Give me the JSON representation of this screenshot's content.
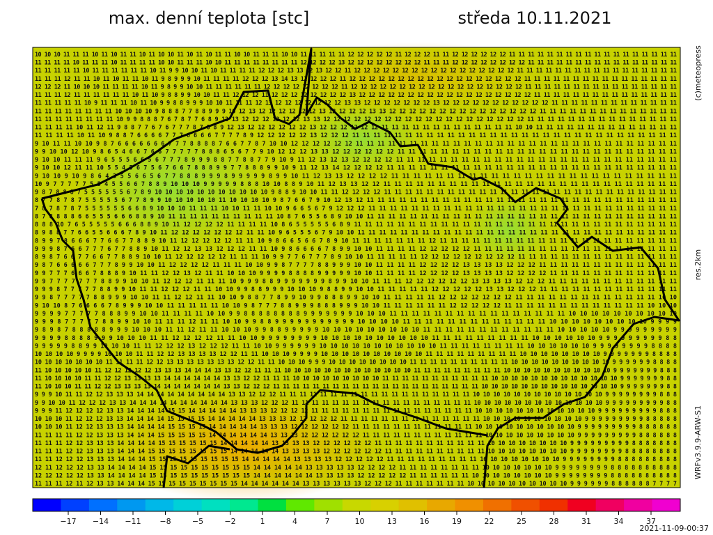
{
  "header": {
    "title": "max. denní teplota [stc]",
    "date": "středa 10.11.2021"
  },
  "side": {
    "copyright": "(c)meteopress",
    "resolution": "res.2km",
    "model": "WRFv3.9.9-ARW-S1"
  },
  "footer": {
    "timestamp": "2021-11-09-00:37"
  },
  "colorbar": {
    "colors": [
      "#0000ff",
      "#0040ff",
      "#0070ff",
      "#0098f0",
      "#00b8e8",
      "#00d0d8",
      "#00e0c0",
      "#00e890",
      "#00e040",
      "#60e800",
      "#a0e000",
      "#c8d800",
      "#d8d000",
      "#e0c000",
      "#e8a800",
      "#f09000",
      "#f07000",
      "#f05000",
      "#f03000",
      "#f00020",
      "#f00060",
      "#f000a0",
      "#f000d0"
    ],
    "labels": [
      "−17",
      "−14",
      "−11",
      "−8",
      "−5",
      "−2",
      "1",
      "4",
      "7",
      "10",
      "13",
      "16",
      "19",
      "22",
      "25",
      "28",
      "31",
      "34",
      "37"
    ]
  },
  "grid": {
    "rows": [
      "10 10 10 11 11 11 10 11 10 11 11 10 11 10 10 11 10 11 10 11 11 10 10 11 11 11 10 10 11 11 11 11 11 12 12 12 12 12 11 12 12 12 11 11 12 12 12 12 12 12 11 11 11 11 11 11 11 11 11 11 11 11 11 11 11 11 11 11",
      "11 11 11 11 10 11 11 11 10 11 11 11 11 10 10 11 11 11 10 10 11 11 11 11 11 11 11 11 12 12 12 12 13 12 12 12 12 12 12 12 12 11 11 11 12 12 12 12 12 12 12 12 11 11 11 11 11 11 11 11 11 11 11 11 11 11 11 11",
      "11 11 11 11 11 10 11 11 11 11 11 11 10 11 9 9 10 10 11 10 11 11 11 11 12 12 12 13 13 12 13 12 12 11 12 12 12 12 12 12 12 12 12 12 12 12 12 12 12 12 12 11 11 11 11 11 11 11 11 11 11 11 11 11 11 11 11 11",
      "11 11 11 12 11 11 10 11 10 11 11 10 11 9 8 9 9 9 10 11 11 11 11 12 12 12 13 14 13 12 12 12 12 11 12 12 12 12 12 12 12 12 12 12 12 12 12 12 12 12 12 12 11 11 11 11 11 11 11 11 11 11 11 11 11 11 11 11",
      "12 12 12 11 10 10 10 11 11 11 11 10 11 9 8 9 9 10 10 11 11 11 11 11 11 12 12 12 12 12 12 12 12 11 12 12 12 12 12 12 12 12 12 12 12 12 12 12 12 12 12 12 11 11 11 11 11 11 11 11 11 11 11 11 11 11 11 11",
      "11 11 11 12 11 11 11 11 11 11 10 11 10 9 8 8 9 9 10 10 11 11 12 12 12 11 12 12 12 12 12 12 12 12 13 12 12 12 12 12 12 12 12 12 12 12 12 12 12 12 12 12 12 11 11 11 11 11 11 11 11 11 11 11 11 11 11 11",
      "11 11 11 11 11 10 9 11 11 11 10 11 10 9 9 8 8 9 9 9 10 10 11 11 11 12 13 12 12 12 12 12 12 12 13 13 12 12 12 12 12 12 12 13 12 12 12 12 12 12 12 12 12 12 12 11 11 11 11 11 11 11 11 11 11 11 11 11",
      "11 11 11 11 11 11 11 11 10 10 10 10 9 8 8 8 7 7 8 8 9 9 9 10 12 13 12 12 12 12 12 12 13 12 12 12 12 13 13 12 12 12 12 12 12 12 12 12 12 12 12 12 12 12 11 11 11 11 11 11 11 11 11 11 11 11 11 11",
      "11 11 11 11 11 11 11 11 10 9 9 8 8 8 7 6 7 8 7 7 6 8 9 12 13 12 12 12 12 12 12 13 13 12 12 12 12 12 12 12 12 12 12 12 12 12 12 12 12 12 12 12 12 11 11 11 11 11 11 11 11 11 11 11 11 11 11 11",
      "11 11 11 11 10 11 12 11 9 8 8 7 7 6 7 6 7 7 7 8 7 8 8 9 12 13 12 12 12 12 12 12 13 12 12 12 12 12 12 11 11 11 11 11 11 11 11 11 11 11 11 11 10 10 11 11 11 11 11 11 11 11 11 11 11 11 11 11",
      "11 11 11 11 10 11 10 9 8 8 7 6 6 6 6 7 7 7 6 6 6 6 7 7 7 7 8 9 12 12 12 12 12 13 12 12 12 11 11 11 11 11 11 11 11 11 11 11 11 11 11 11 11 11 11 11 11 11 11 11 11 11 11 11 11 11 11 11",
      "9 10 11 11 10 10 9 8 7 6 6 6 6 6 6 6 7 7 7 8 8 8 8 7 6 6 7 7 8 7 10 10 12 12 12 12 12 12 11 11 11 11 11 11 11 11 11 11 11 11 11 11 11 11 11 11 11 11 11 11 11 11 11 11 11 11 11 11",
      "9 9 10 10 12 10 9 8 6 5 4 6 6 7 6 6 7 7 7 7 7 8 8 8 6 5 6 7 7 9 10 12 12 12 13 13 12 12 12 12 12 12 11 11 11 11 11 11 11 11 11 11 11 11 11 11 11 11 11 11 11 11 11 11 11 11 11 11",
      "9 10 10 11 11 11 9 6 5 5 5 6 6 5 6 7 7 7 8 9 9 9 8 8 7 7 8 8 7 7 9 10 9 11 12 13 12 13 12 12 12 12 11 11 11 11 11 11 11 11 11 11 11 11 11 11 11 11 11 11 11 11 11 11 11 11 11 11",
      "9 10 10 12 11 11 10 5 5 4 5 6 7 5 6 7 6 6 7 8 8 8 9 9 7 7 8 8 8 9 9 10 9 11 12 13 14 12 12 12 12 11 11 11 11 11 11 11 11 11 11 11 11 11 11 11 11 11 11 11 11 11 11 11 11 11 11 11",
      "9 10 10 9 10 9 8 6 4 3 5 5 6 6 5 6 7 7 8 8 8 9 9 9 8 9 9 9 9 9 8 9 9 10 11 12 13 13 12 12 12 12 11 11 11 11 11 11 11 11 11 11 11 11 11 11 11 11 11 11 11 11 11 11 11 11 11 11",
      "10 9 7 7 7 7 7 5 5 4 5 5 6 6 7 8 8 9 10 10 10 9 9 9 9 9 8 8 8 10 10 8 8 9 10 11 12 13 13 12 12 11 11 11 11 11 11 11 11 11 11 11 11 11 11 11 11 11 11 11 11 11 11 11 11 11 11 11",
      "9 8 7 8 8 8 7 5 5 5 5 5 5 6 7 8 9 10 10 10 10 10 10 10 10 10 10 10 9 8 8 9 10 10 11 11 12 12 12 12 11 11 11 11 11 11 11 11 11 11 11 11 11 11 11 11 11 11 11 11 11 11 11 11 11 11 11 11",
      "8 7 7 8 7 8 7 5 5 5 5 5 6 7 7 8 9 9 10 10 10 10 10 11 10 10 10 10 9 8 7 6 6 7 9 10 12 13 12 11 11 11 11 11 11 11 11 11 11 11 11 11 11 11 11 11 11 11 11 11 11 11 11 11 11 11 11 11",
      "7 8 7 8 7 8 7 5 5 5 5 5 5 6 6 8 9 10 10 10 11 11 11 10 10 11 11 10 10 9 6 6 5 6 7 9 12 12 12 11 11 11 11 11 11 11 11 11 11 11 11 11 11 11 11 11 11 11 11 11 11 11 11 11 11 11 11 11",
      "8 7 8 8 8 8 6 6 5 5 5 6 6 6 8 8 9 10 11 11 11 11 11 11 11 11 11 11 10 8 7 6 5 5 6 8 9 10 10 11 11 11 11 11 11 11 11 11 11 11 11 11 11 11 11 11 11 11 11 11 11 11 11 11 11 11 11 11",
      "8 8 8 10 7 6 5 5 5 5 5 6 6 6 8 8 9 10 11 12 12 12 12 11 11 11 11 10 8 6 5 5 5 5 5 6 8 9 11 11 11 11 11 11 11 11 11 11 11 11 11 11 11 11 11 11 11 11 11 11 11 11 11 11 11 11 11 11",
      "8 9 8 8 7 7 6 6 5 5 6 6 6 7 8 9 10 11 12 12 12 12 12 12 12 11 11 10 9 6 5 5 5 6 7 9 10 10 11 11 11 11 11 11 11 11 11 11 11 11 11 11 11 11 11 11 11 11 11 11 11 11 11 11 11 11 11 11",
      "8 9 9 7 8 6 6 6 7 7 6 6 7 7 8 8 9 10 11 12 12 12 12 12 11 11 10 9 8 6 6 5 6 6 7 8 9 10 11 11 11 11 11 11 11 12 11 11 11 11 11 11 11 11 11 11 11 11 11 11 11 11 11 11 11 11 11 11",
      "9 9 9 8 7 6 6 7 7 7 6 7 7 8 8 9 10 11 12 12 13 13 12 12 12 11 11 10 9 8 6 6 6 6 7 8 9 9 10 10 11 11 11 11 12 12 12 12 12 11 11 11 11 11 11 11 11 11 11 11 11 11 11 11 11 11 11 11",
      "8 9 8 7 6 6 7 7 6 6 7 7 8 8 9 10 10 11 12 12 12 12 12 11 11 11 10 9 9 7 7 6 7 7 7 8 9 10 10 11 11 11 11 11 12 12 12 12 12 12 12 12 12 11 11 11 11 11 11 11 11 11 11 11 11 11 11 11",
      "9 8 7 6 6 6 6 6 7 7 7 8 9 9 10 10 11 12 12 12 12 11 11 11 10 10 9 9 8 7 7 7 7 8 8 9 9 9 10 10 11 11 11 11 12 12 12 12 13 13 13 13 12 12 12 11 11 11 11 11 11 11 11 11 11 11 11 11",
      "9 9 7 7 7 6 6 6 7 8 8 8 9 10 11 11 12 12 13 12 11 11 10 10 10 9 9 9 9 8 8 8 8 9 9 9 9 9 10 10 11 11 11 11 12 12 12 12 13 13 13 13 12 12 12 12 11 11 11 11 11 11 11 11 11 11 11 11",
      "9 9 7 7 7 7 7 7 7 8 8 9 9 10 10 11 12 12 12 11 11 11 10 9 9 9 8 8 9 9 9 9 9 9 9 8 9 9 10 10 11 11 11 12 12 12 12 12 12 13 13 13 13 12 12 12 11 11 11 11 11 11 11 11 11 11 11 11",
      "9 9 9 8 7 7 7 7 7 8 8 9 9 10 11 11 12 12 12 11 11 10 10 9 9 8 8 9 9 9 10 10 10 9 8 8 9 9 10 10 11 11 11 11 11 12 12 12 12 12 13 13 12 12 12 11 11 11 11 11 11 11 11 11 11 11 11 11",
      "9 9 8 7 7 7 7 7 8 8 9 9 9 10 10 11 11 12 12 11 11 10 10 9 8 8 7 7 8 9 9 10 9 9 8 8 8 9 9 10 10 11 11 11 11 11 12 12 12 12 12 12 12 11 11 11 11 11 11 11 11 11 11 11 11 11 10 10",
      "9 10 10 8 7 6 6 6 6 7 8 9 9 9 10 10 11 11 11 11 11 10 10 9 8 7 7 7 8 8 9 9 9 8 8 8 9 9 9 10 10 11 11 11 11 11 11 12 12 12 12 12 11 11 11 11 11 11 11 11 11 11 11 11 11 10 10 10",
      "9 9 9 9 7 7 7 7 7 8 8 8 9 9 10 10 11 11 11 11 10 10 9 9 8 8 8 8 8 8 8 8 9 9 9 9 9 9 9 10 10 10 11 11 11 11 11 11 11 11 11 11 11 11 11 11 11 11 10 10 10 10 10 10 10 10 10 10",
      "9 9 9 8 7 7 7 7 7 8 8 9 9 10 10 11 11 11 12 11 11 10 10 9 9 8 8 9 9 9 9 9 9 9 9 9 9 9 10 10 10 10 11 11 11 11 11 11 11 11 11 11 11 11 11 10 10 10 10 10 10 10 10 10 9 9 9 9",
      "9 8 9 8 7 8 8 8 8 8 9 9 9 10 10 10 11 11 12 11 11 10 10 10 9 9 8 8 9 9 9 9 9 10 10 10 10 10 10 10 10 10 11 11 11 11 11 11 11 11 11 11 11 11 10 10 10 10 10 9 9 9 9 9 9 9 9 9",
      "9 9 9 9 8 8 8 8 9 9 9 10 10 10 11 11 12 12 12 12 11 11 10 10 9 9 9 9 9 9 9 9 10 10 10 10 10 10 10 10 10 10 11 11 11 11 11 11 11 11 11 10 10 10 10 10 10 9 9 9 9 9 9 9 9 9 8 8",
      "9 9 9 9 9 8 8 9 9 10 10 10 11 11 12 12 12 13 12 12 12 11 11 10 10 9 9 9 9 9 9 10 10 10 10 10 10 10 10 10 10 10 11 11 11 11 11 11 11 11 10 10 10 10 10 10 9 9 9 9 9 9 9 9 8 8 8 8",
      "10 10 10 10 9 9 9 9 10 10 10 11 11 12 12 13 13 13 13 12 12 11 11 10 10 10 9 9 9 9 10 10 10 10 10 10 10 10 10 10 11 11 11 11 11 11 11 11 11 10 10 10 10 10 10 10 10 9 9 9 9 9 9 9 8 8 8 8",
      "10 10 10 10 10 10 10 11 11 11 11 12 12 13 13 13 13 13 13 13 12 12 11 11 10 10 10 9 9 9 10 10 10 10 10 10 10 10 11 11 11 11 11 11 11 11 11 11 10 10 10 10 10 10 10 10 10 10 9 9 9 9 9 9 8 8 8 8",
      "11 10 10 10 10 10 11 12 12 12 12 12 13 13 13 14 14 14 13 13 12 12 11 11 11 10 10 10 10 10 10 10 10 10 10 10 10 10 11 11 11 11 11 11 11 11 11 10 10 10 10 10 10 10 10 10 10 10 9 9 9 9 9 9 9 8 8 8",
      "11 10 10 10 10 11 11 12 12 13 13 13 13 14 14 14 14 14 14 13 13 12 12 11 11 11 10 10 10 10 10 10 10 10 10 11 11 11 11 11 11 11 11 11 11 11 10 10 10 10 10 10 10 10 10 10 10 10 10 9 9 9 9 9 9 9 8 8",
      "11 10 10 10 11 11 12 12 13 13 13 13 14 14 14 14 14 14 14 13 13 12 12 12 11 11 11 11 11 11 11 11 11 11 11 11 11 11 11 11 11 11 11 11 11 10 10 10 10 10 10 10 10 10 10 10 10 10 10 9 9 9 9 9 9 9 8 8",
      "9 9 9 10 11 11 12 12 13 13 13 14 14 14 14 14 14 14 14 14 13 13 12 12 12 11 11 11 11 11 11 11 11 11 11 11 11 11 11 11 11 11 11 11 10 10 10 10 10 10 10 10 10 10 10 10 10 9 9 9 9 9 9 9 9 8 8 8",
      "9 9 10 10 11 12 12 12 13 13 14 14 14 14 14 14 14 14 14 14 13 13 13 12 12 12 11 11 11 11 11 11 11 11 11 11 11 11 11 11 11 11 11 11 10 10 10 10 10 10 10 10 10 10 10 10 10 9 9 9 9 9 9 9 9 9 8 8",
      "9 9 9 11 12 12 12 12 13 13 14 14 14 14 15 15 14 14 14 14 14 13 13 13 12 12 12 12 11 11 11 11 11 11 11 11 11 11 11 11 11 11 11 11 10 10 10 10 10 10 10 10 10 10 10 10 9 9 9 9 9 9 9 9 9 8 8 8",
      "10 10 10 11 12 12 12 13 13 14 14 14 14 15 15 15 15 14 14 14 14 14 13 13 13 12 12 12 12 12 11 11 11 11 11 11 11 11 11 11 11 11 11 11 10 10 10 10 10 10 10 10 10 10 9 9 9 9 9 9 9 9 9 8 8 8 8 8",
      "10 10 10 11 12 12 13 13 13 14 14 14 14 15 15 15 15 14 14 14 14 14 13 13 13 12 12 12 12 12 12 11 11 11 11 11 11 11 11 11 11 11 11 10 10 10 10 10 10 10 10 10 10 9 9 9 9 9 9 9 9 9 8 8 8 8 8 8",
      "11 11 11 11 12 12 13 13 13 14 14 14 15 15 15 15 15 14 14 14 14 14 14 13 13 13 12 12 12 12 12 12 11 11 11 11 11 11 11 11 11 11 11 11 10 10 10 10 10 10 10 10 10 9 9 9 9 9 9 9 9 9 8 8 8 8 8 8",
      "11 11 11 12 12 13 13 13 14 14 14 14 15 15 15 15 15 15 14 14 14 14 14 13 13 13 13 12 12 12 12 12 12 11 11 11 11 11 11 11 11 11 11 11 10 10 10 10 10 10 10 10 9 9 9 9 9 9 9 9 9 8 8 8 8 8 8 8",
      "11 11 11 12 12 13 13 13 14 14 14 15 15 15 15 15 15 15 15 14 14 14 14 14 13 13 13 13 12 12 12 12 12 12 11 11 11 11 11 11 11 11 11 11 10 10 10 10 10 10 10 10 9 9 9 9 9 9 9 9 8 8 8 8 8 8 8 8",
      "11 11 12 12 12 13 13 13 14 14 14 15 15 15 15 15 15 15 15 15 14 14 14 14 14 13 13 13 13 12 12 12 12 12 11 11 11 11 11 11 11 11 11 10 10 10 10 10 10 10 10 9 9 9 9 9 9 9 9 8 8 8 8 8 8 8 8 8",
      "12 11 12 12 12 13 13 14 14 14 14 15 15 15 15 15 15 15 15 15 15 14 14 14 14 14 13 13 13 13 13 12 12 12 12 11 11 11 11 11 11 11 11 10 10 10 10 10 10 10 9 9 9 9 9 9 9 9 8 8 8 8 8 8 8 8 8 8",
      "12 12 12 12 12 13 13 14 14 14 14 15 15 15 15 15 15 15 15 15 15 14 14 14 14 14 14 13 13 13 13 12 12 12 12 12 11 11 11 11 11 11 10 10 10 10 10 10 10 10 9 9 9 9 9 9 9 9 8 8 8 8 8 8 8 8 8 8",
      "11 11 11 12 11 12 13 13 14 14 14 15 15 15 15 15 15 15 15 15 14 14 14 14 14 14 13 13 13 13 13 13 12 12 12 11 11 11 11 11 11 11 10 10 10 10 10 10 10 10 10 10 9 9 9 9 9 9 8 8 8 8 8 8 7 7 7 7"
    ]
  }
}
